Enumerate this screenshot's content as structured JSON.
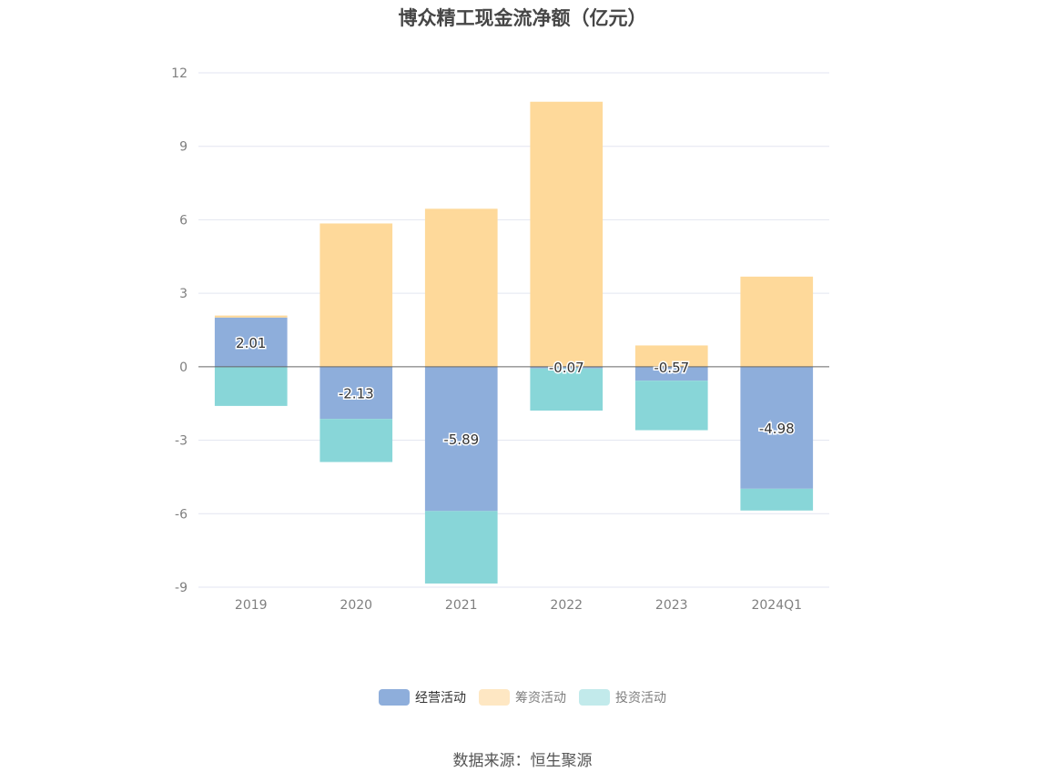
{
  "chart_data": {
    "type": "bar",
    "title": "博众精工现金流净额（亿元）",
    "categories": [
      "2019",
      "2020",
      "2021",
      "2022",
      "2023",
      "2024Q1"
    ],
    "ylim": [
      -9,
      12
    ],
    "yticks": [
      12,
      9,
      6,
      3,
      0,
      -3,
      -6,
      -9
    ],
    "grid": true,
    "stacked": true,
    "legend_position": "bottom",
    "series": [
      {
        "name": "经营活动",
        "color": "#8eaedb",
        "values": [
          2.01,
          -2.13,
          -5.89,
          -0.07,
          -0.57,
          -4.98
        ],
        "labels": [
          "2.01",
          "-2.13",
          "-5.89",
          "-0.07",
          "-0.57",
          "-4.98"
        ]
      },
      {
        "name": "筹资活动",
        "color": "#fed99a",
        "values": [
          0.08,
          5.85,
          6.45,
          10.82,
          0.87,
          3.68
        ]
      },
      {
        "name": "投资活动",
        "color": "#88d6d8",
        "values": [
          -1.6,
          -1.76,
          -2.96,
          -1.72,
          -2.02,
          -0.89
        ]
      }
    ]
  },
  "legend": [
    {
      "label": "经营活动",
      "color": "#8eaedb"
    },
    {
      "label": "筹资活动",
      "color": "#fee7c3"
    },
    {
      "label": "投资活动",
      "color": "#c2eaeb"
    }
  ],
  "source": "数据来源：恒生聚源"
}
